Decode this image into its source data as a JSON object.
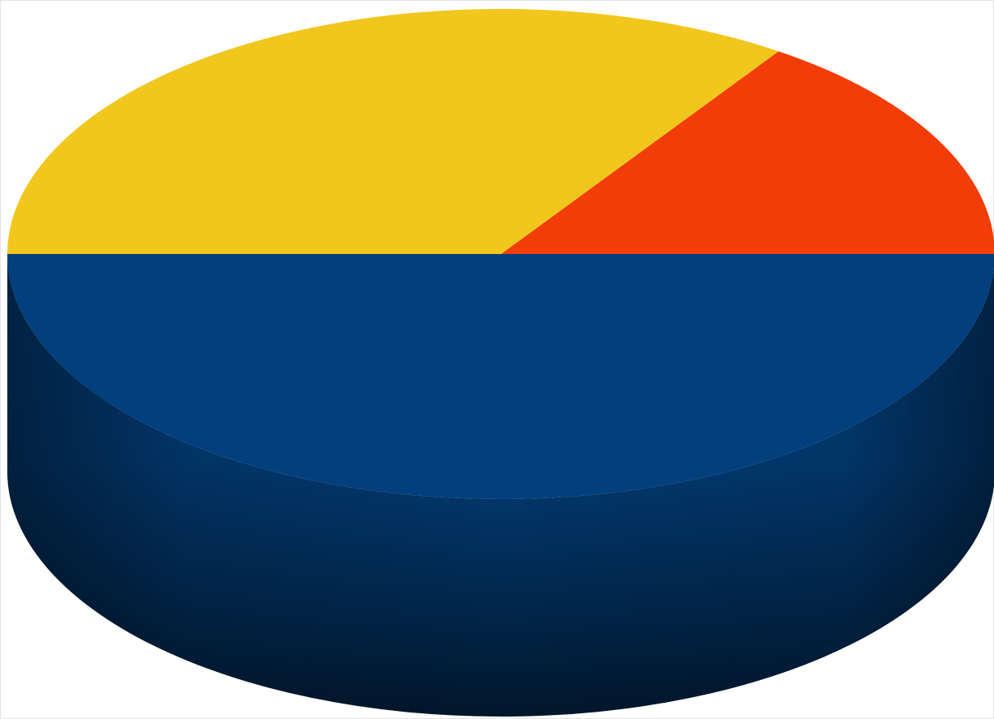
{
  "chart_data": {
    "type": "pie",
    "style": "3d",
    "title": "",
    "legend": "none",
    "data_labels": "none",
    "start_angle_deg": 180,
    "direction": "counterclockwise",
    "slices": [
      {
        "value": 50,
        "color": "#023F7C"
      },
      {
        "value": 15.5,
        "color": "#F33D09"
      },
      {
        "value": 34.5,
        "color": "#F1C71E"
      }
    ]
  }
}
